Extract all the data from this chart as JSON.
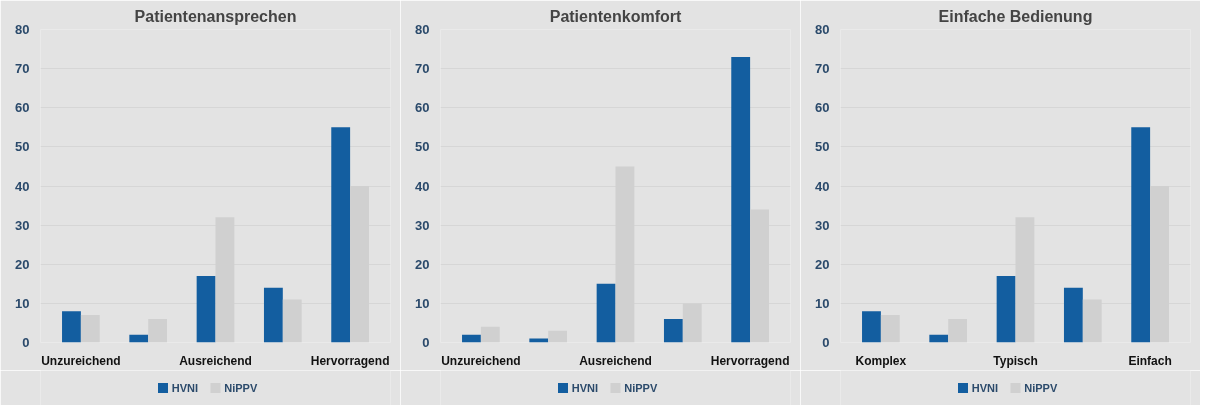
{
  "chart_data": [
    {
      "type": "bar",
      "title": "Patientenansprechen",
      "categories": [
        "Unzureichend",
        null,
        "Ausreichend",
        null,
        "Hervorragend"
      ],
      "ylim": [
        0,
        80
      ],
      "yticks": [
        0,
        10,
        20,
        30,
        40,
        50,
        60,
        70,
        80
      ],
      "grid": "y",
      "legend": "bottom",
      "series": [
        {
          "name": "HVNI",
          "color": "#135ea0",
          "values": [
            8,
            2,
            17,
            14,
            55
          ]
        },
        {
          "name": "NiPPV",
          "color": "#d0d0d0",
          "values": [
            7,
            6,
            32,
            11,
            40
          ]
        }
      ]
    },
    {
      "type": "bar",
      "title": "Patientenkomfort",
      "categories": [
        "Unzureichend",
        null,
        "Ausreichend",
        null,
        "Hervorragend"
      ],
      "ylim": [
        0,
        80
      ],
      "yticks": [
        0,
        10,
        20,
        30,
        40,
        50,
        60,
        70,
        80
      ],
      "grid": "y",
      "legend": "bottom",
      "series": [
        {
          "name": "HVNI",
          "color": "#135ea0",
          "values": [
            2,
            1,
            15,
            6,
            73
          ]
        },
        {
          "name": "NiPPV",
          "color": "#d0d0d0",
          "values": [
            4,
            3,
            45,
            10,
            34
          ]
        }
      ]
    },
    {
      "type": "bar",
      "title": "Einfache Bedienung",
      "categories": [
        "Komplex",
        null,
        "Typisch",
        null,
        "Einfach"
      ],
      "ylim": [
        0,
        80
      ],
      "yticks": [
        0,
        10,
        20,
        30,
        40,
        50,
        60,
        70,
        80
      ],
      "grid": "y",
      "legend": "bottom",
      "series": [
        {
          "name": "HVNI",
          "color": "#135ea0",
          "values": [
            8,
            2,
            17,
            14,
            55
          ]
        },
        {
          "name": "NiPPV",
          "color": "#d0d0d0",
          "values": [
            7,
            6,
            32,
            11,
            40
          ]
        }
      ]
    }
  ]
}
